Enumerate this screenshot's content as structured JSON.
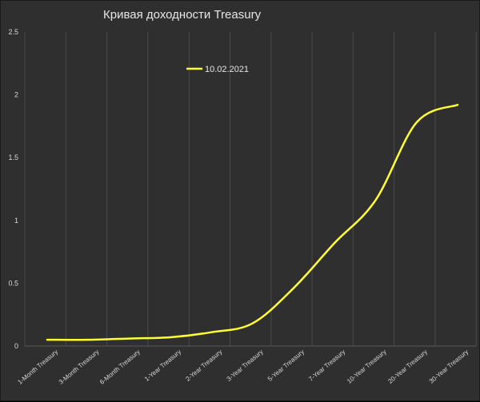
{
  "chart_data": {
    "type": "line",
    "title": "Кривая доходности Treasury",
    "categories": [
      "1-Month Treasury",
      "3-Month Treasury",
      "6-Month Treasury",
      "1-Year Treasury",
      "2-Year Treasury",
      "3-Year Treasury",
      "5-Year Treasury",
      "7-Year Treasury",
      "10-Year Treasury",
      "20-Year Treasury",
      "30-Year Treasury"
    ],
    "series": [
      {
        "name": "10.02.2021",
        "color": "#ffff33",
        "values": [
          0.05,
          0.05,
          0.06,
          0.07,
          0.11,
          0.18,
          0.46,
          0.82,
          1.16,
          1.78,
          1.92
        ]
      }
    ],
    "y_ticks": [
      "0",
      "0.5",
      "1",
      "1.5",
      "2",
      "2.5"
    ],
    "ylim": [
      0,
      2.5
    ],
    "grid": "vertical",
    "legend_position": "top-left",
    "background_color": "#2f2f2f",
    "grid_color": "#4a4a4a",
    "text_color": "#d9d9d9"
  }
}
